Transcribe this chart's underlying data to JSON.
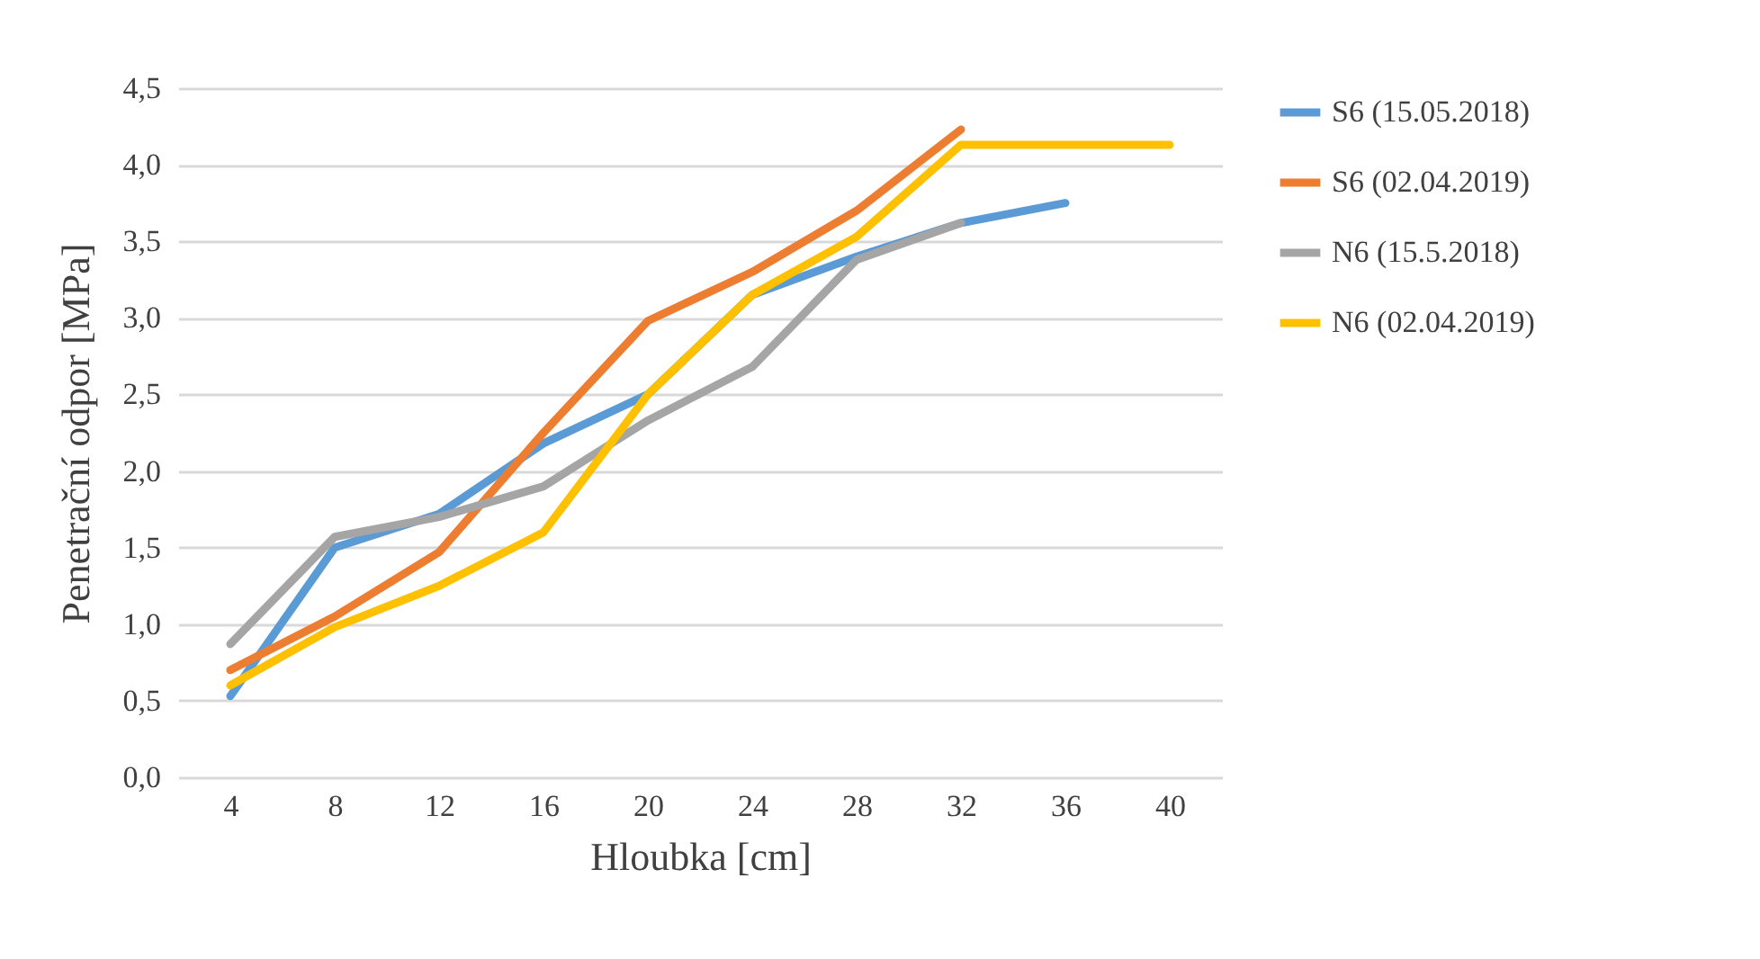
{
  "chart_data": {
    "type": "line",
    "xlabel": "Hloubka [cm]",
    "ylabel": "Penetrační odpor [MPa]",
    "categories": [
      "4",
      "8",
      "12",
      "16",
      "20",
      "24",
      "28",
      "32",
      "36",
      "40"
    ],
    "series": [
      {
        "name": "S6 (15.05.2018)",
        "color": "#5b9bd5",
        "values": [
          0.53,
          1.5,
          1.72,
          2.18,
          2.5,
          3.15,
          3.4,
          3.62,
          3.75,
          null
        ]
      },
      {
        "name": "S6 (02.04.2019)",
        "color": "#ed7d31",
        "values": [
          0.7,
          1.05,
          1.47,
          2.25,
          2.98,
          3.3,
          3.7,
          4.23,
          null,
          null
        ]
      },
      {
        "name": "N6 (15.5.2018)",
        "color": "#a5a5a5",
        "values": [
          0.87,
          1.57,
          1.7,
          1.9,
          2.33,
          2.68,
          3.38,
          3.62,
          null,
          null
        ]
      },
      {
        "name": "N6 (02.04.2019)",
        "color": "#ffc000",
        "values": [
          0.6,
          0.98,
          1.25,
          1.6,
          2.5,
          3.15,
          3.53,
          4.13,
          4.13,
          4.13
        ]
      }
    ],
    "ylim": [
      0,
      4.5
    ],
    "yticks": [
      {
        "value": 0,
        "label": "0,0"
      },
      {
        "value": 0.5,
        "label": "0,5"
      },
      {
        "value": 1,
        "label": "1,0"
      },
      {
        "value": 1.5,
        "label": "1,5"
      },
      {
        "value": 2,
        "label": "2,0"
      },
      {
        "value": 2.5,
        "label": "2,5"
      },
      {
        "value": 3,
        "label": "3,0"
      },
      {
        "value": 3.5,
        "label": "3,5"
      },
      {
        "value": 4,
        "label": "4,0"
      },
      {
        "value": 4.5,
        "label": "4,5"
      }
    ],
    "grid": "y",
    "legend": "right",
    "marker": "none",
    "line_style": "solid"
  }
}
